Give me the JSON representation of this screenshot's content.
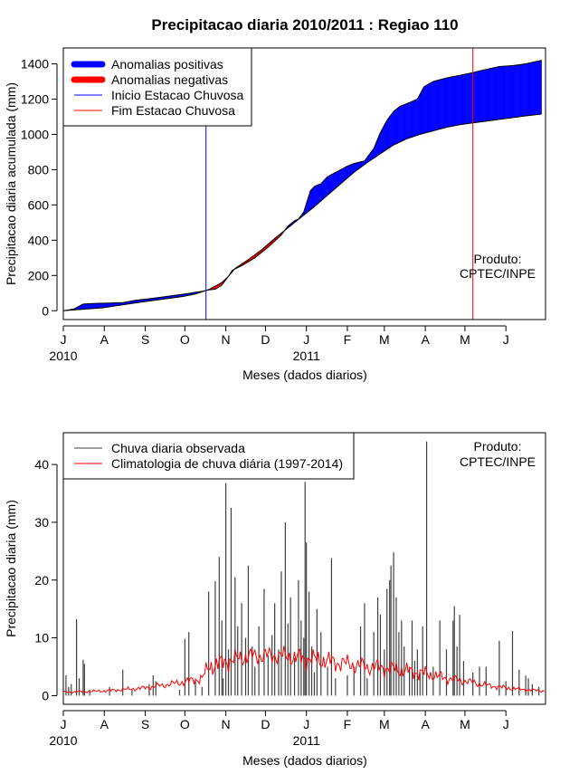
{
  "page_title": "Precipitacao diaria 2010/2011 : Regiao 110",
  "chart_data": [
    {
      "type": "area",
      "id": "cumulative",
      "title": "Precipitacao diaria 2010/2011 : Regiao 110",
      "xlabel": "Meses (dados diarios)",
      "ylabel": "Precipitacao diaria acumulada (mm)",
      "x_unit": "days since 2010-07-01",
      "xlim": [
        0,
        365
      ],
      "ylim": [
        -50,
        1490
      ],
      "yticks": [
        0,
        200,
        400,
        600,
        800,
        1000,
        1200,
        1400
      ],
      "month_ticks": {
        "positions": [
          0,
          31,
          62,
          92,
          123,
          153,
          184,
          215,
          243,
          274,
          304,
          335
        ],
        "labels": [
          "J",
          "A",
          "S",
          "O",
          "N",
          "D",
          "J",
          "F",
          "M",
          "A",
          "M",
          "J"
        ]
      },
      "year_labels": [
        {
          "text": "2010",
          "x": 0
        },
        {
          "text": "2011",
          "x": 184
        }
      ],
      "legend": [
        {
          "label": "Anomalias positivas",
          "color": "#0000ff",
          "style": "thick"
        },
        {
          "label": "Anomalias negativas",
          "color": "#ff0000",
          "style": "thick"
        },
        {
          "label": "Inicio Estacao Chuvosa",
          "color": "#0000ff",
          "style": "thin"
        },
        {
          "label": "Fim Estacao Chuvosa",
          "color": "#ff0000",
          "style": "thin"
        }
      ],
      "legend_position": "top-left",
      "onset_day": 108,
      "end_day": 310,
      "series": [
        {
          "name": "Acumulado observado",
          "points": [
            [
              0,
              0
            ],
            [
              8,
              10
            ],
            [
              15,
              38
            ],
            [
              20,
              40
            ],
            [
              25,
              42
            ],
            [
              35,
              44
            ],
            [
              45,
              46
            ],
            [
              55,
              60
            ],
            [
              65,
              68
            ],
            [
              75,
              78
            ],
            [
              85,
              88
            ],
            [
              95,
              98
            ],
            [
              100,
              105
            ],
            [
              105,
              110
            ],
            [
              110,
              118
            ],
            [
              115,
              122
            ],
            [
              120,
              145
            ],
            [
              125,
              195
            ],
            [
              128,
              230
            ],
            [
              135,
              255
            ],
            [
              145,
              300
            ],
            [
              155,
              360
            ],
            [
              165,
              430
            ],
            [
              170,
              480
            ],
            [
              175,
              510
            ],
            [
              178,
              520
            ],
            [
              182,
              560
            ],
            [
              187,
              680
            ],
            [
              190,
              705
            ],
            [
              195,
              720
            ],
            [
              200,
              760
            ],
            [
              205,
              780
            ],
            [
              210,
              800
            ],
            [
              215,
              820
            ],
            [
              220,
              835
            ],
            [
              228,
              850
            ],
            [
              235,
              920
            ],
            [
              240,
              1010
            ],
            [
              245,
              1080
            ],
            [
              250,
              1130
            ],
            [
              255,
              1160
            ],
            [
              262,
              1180
            ],
            [
              268,
              1200
            ],
            [
              273,
              1270
            ],
            [
              280,
              1300
            ],
            [
              290,
              1320
            ],
            [
              300,
              1335
            ],
            [
              310,
              1350
            ],
            [
              315,
              1360
            ],
            [
              330,
              1385
            ],
            [
              340,
              1390
            ],
            [
              350,
              1400
            ],
            [
              362,
              1420
            ]
          ]
        },
        {
          "name": "Acumulado climatologico",
          "points": [
            [
              0,
              0
            ],
            [
              30,
              17
            ],
            [
              60,
              50
            ],
            [
              90,
              80
            ],
            [
              100,
              95
            ],
            [
              110,
              120
            ],
            [
              120,
              160
            ],
            [
              125,
              195
            ],
            [
              130,
              240
            ],
            [
              140,
              290
            ],
            [
              150,
              345
            ],
            [
              160,
              410
            ],
            [
              170,
              470
            ],
            [
              180,
              530
            ],
            [
              190,
              590
            ],
            [
              200,
              655
            ],
            [
              210,
              720
            ],
            [
              220,
              785
            ],
            [
              230,
              840
            ],
            [
              240,
              890
            ],
            [
              250,
              940
            ],
            [
              260,
              975
            ],
            [
              270,
              1000
            ],
            [
              280,
              1020
            ],
            [
              290,
              1040
            ],
            [
              300,
              1055
            ],
            [
              310,
              1065
            ],
            [
              320,
              1075
            ],
            [
              330,
              1085
            ],
            [
              340,
              1095
            ],
            [
              350,
              1105
            ],
            [
              362,
              1115
            ]
          ]
        }
      ],
      "annotation": [
        "Produto:",
        "CPTEC/INPE"
      ]
    },
    {
      "type": "bar",
      "id": "daily",
      "xlabel": "Meses (dados diarios)",
      "ylabel": "Precipitacao diaria (mm)",
      "x_unit": "days since 2010-07-01",
      "xlim": [
        0,
        365
      ],
      "ylim": [
        -1.5,
        45.5
      ],
      "yticks": [
        0,
        10,
        20,
        30,
        40
      ],
      "month_ticks": {
        "positions": [
          0,
          31,
          62,
          92,
          123,
          153,
          184,
          215,
          243,
          274,
          304,
          335
        ],
        "labels": [
          "J",
          "A",
          "S",
          "O",
          "N",
          "D",
          "J",
          "F",
          "M",
          "A",
          "M",
          "J"
        ]
      },
      "year_labels": [
        {
          "text": "2010",
          "x": 0
        },
        {
          "text": "2011",
          "x": 184
        }
      ],
      "legend": [
        {
          "label": "Chuva diaria observada",
          "color": "#404040"
        },
        {
          "label": "Climatologia de chuva diária (1997-2014)",
          "color": "#ff0000"
        }
      ],
      "legend_position": "top-left",
      "series": [
        {
          "name": "Chuva diaria observada",
          "bars": [
            [
              2,
              3.5
            ],
            [
              4,
              1.5
            ],
            [
              6,
              2
            ],
            [
              10,
              13.2
            ],
            [
              12,
              3
            ],
            [
              15,
              6.2
            ],
            [
              16,
              5.5
            ],
            [
              20,
              1
            ],
            [
              35,
              1.5
            ],
            [
              45,
              4.5
            ],
            [
              52,
              1
            ],
            [
              65,
              2
            ],
            [
              68,
              3.5
            ],
            [
              70,
              2.5
            ],
            [
              88,
              1
            ],
            [
              92,
              9.8
            ],
            [
              95,
              11
            ],
            [
              100,
              2.5
            ],
            [
              105,
              1.5
            ],
            [
              110,
              18
            ],
            [
              115,
              19.8
            ],
            [
              118,
              24
            ],
            [
              120,
              13
            ],
            [
              121,
              3
            ],
            [
              123,
              36.8
            ],
            [
              125,
              8
            ],
            [
              127,
              32.5
            ],
            [
              130,
              20.5
            ],
            [
              132,
              12
            ],
            [
              135,
              16
            ],
            [
              138,
              10
            ],
            [
              140,
              22.5
            ],
            [
              143,
              8.5
            ],
            [
              145,
              5
            ],
            [
              148,
              12
            ],
            [
              152,
              18.5
            ],
            [
              155,
              7
            ],
            [
              158,
              10.5
            ],
            [
              160,
              16
            ],
            [
              163,
              8
            ],
            [
              165,
              21.5
            ],
            [
              168,
              30
            ],
            [
              170,
              12.5
            ],
            [
              172,
              17
            ],
            [
              175,
              6.5
            ],
            [
              178,
              20
            ],
            [
              180,
              13
            ],
            [
              182,
              10
            ],
            [
              183,
              37
            ],
            [
              184,
              26.5
            ],
            [
              186,
              18
            ],
            [
              188,
              8.5
            ],
            [
              190,
              4
            ],
            [
              192,
              15
            ],
            [
              195,
              11
            ],
            [
              200,
              5
            ],
            [
              203,
              23.8
            ],
            [
              206,
              3
            ],
            [
              215,
              3.5
            ],
            [
              220,
              5
            ],
            [
              225,
              12
            ],
            [
              228,
              16
            ],
            [
              230,
              3
            ],
            [
              235,
              11
            ],
            [
              238,
              17
            ],
            [
              240,
              14
            ],
            [
              243,
              8
            ],
            [
              245,
              18.5
            ],
            [
              247,
              20
            ],
            [
              248,
              22.5
            ],
            [
              250,
              24.8
            ],
            [
              252,
              17
            ],
            [
              254,
              11
            ],
            [
              256,
              13
            ],
            [
              258,
              8.5
            ],
            [
              262,
              5
            ],
            [
              264,
              13
            ],
            [
              266,
              6
            ],
            [
              268,
              8
            ],
            [
              270,
              4
            ],
            [
              272,
              12
            ],
            [
              275,
              44
            ],
            [
              280,
              5
            ],
            [
              285,
              13
            ],
            [
              290,
              8
            ],
            [
              295,
              13
            ],
            [
              296,
              15.5
            ],
            [
              298,
              8.5
            ],
            [
              300,
              14
            ],
            [
              303,
              6
            ],
            [
              310,
              4
            ],
            [
              315,
              5
            ],
            [
              320,
              5
            ],
            [
              330,
              9.5
            ],
            [
              335,
              2.5
            ],
            [
              340,
              11.2
            ],
            [
              345,
              4.5
            ],
            [
              350,
              3.5
            ],
            [
              352,
              3
            ],
            [
              355,
              2
            ],
            [
              360,
              1.5
            ]
          ]
        },
        {
          "name": "Climatologia de chuva diária (1997-2014)",
          "profile": [
            [
              0,
              0.6
            ],
            [
              30,
              0.8
            ],
            [
              60,
              1.3
            ],
            [
              90,
              2.3
            ],
            [
              105,
              3.0
            ],
            [
              110,
              5.0
            ],
            [
              125,
              6.0
            ],
            [
              140,
              6.8
            ],
            [
              160,
              7.0
            ],
            [
              180,
              6.5
            ],
            [
              200,
              6.0
            ],
            [
              215,
              5.5
            ],
            [
              230,
              5.0
            ],
            [
              245,
              4.8
            ],
            [
              260,
              4.3
            ],
            [
              275,
              3.8
            ],
            [
              290,
              3.0
            ],
            [
              305,
              2.5
            ],
            [
              320,
              1.8
            ],
            [
              340,
              1.2
            ],
            [
              364,
              0.8
            ]
          ]
        }
      ],
      "annotation": [
        "Produto:",
        "CPTEC/INPE"
      ]
    }
  ]
}
